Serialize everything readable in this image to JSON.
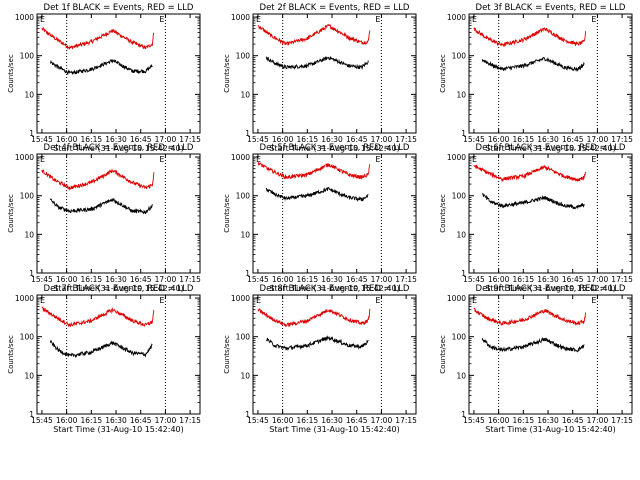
{
  "window": {
    "width_label": "",
    "background": "#ffffff"
  },
  "common": {
    "ylabel": "Counts/sec",
    "xlabel": "Start Time (31-Aug-10 15:42:40)",
    "x_ticks": [
      "15:45",
      "16:00",
      "16:15",
      "16:30",
      "16:45",
      "17:00",
      "17:15"
    ],
    "y_ticks": [
      "1",
      "10",
      "100",
      "1000"
    ],
    "flag_letter": "E",
    "colors": {
      "events": "#000000",
      "lld": "#dd0000"
    }
  },
  "chart_data": [
    {
      "type": "line",
      "title": "Det 1f BLACK = Events, RED = LLD",
      "xlabel": "Start Time (31-Aug-10 15:42:40)",
      "ylabel": "Counts/sec",
      "x_range": [
        "15:42",
        "17:21"
      ],
      "ylim": [
        1,
        1200
      ],
      "yscale": "log",
      "vlines": [
        "16:00",
        "17:00"
      ],
      "series": [
        {
          "name": "LLD",
          "color": "#dd0000",
          "x_min": [
            45,
            53,
            62,
            75,
            88,
            100,
            108,
            112,
            113
          ],
          "values": [
            500,
            280,
            160,
            230,
            450,
            220,
            160,
            200,
            420
          ]
        },
        {
          "name": "Events",
          "color": "#000000",
          "x_min": [
            50,
            55,
            62,
            75,
            88,
            100,
            108,
            112
          ],
          "values": [
            70,
            50,
            35,
            45,
            75,
            40,
            40,
            55
          ]
        }
      ]
    },
    {
      "type": "line",
      "title": "Det 2f BLACK = Events, RED = LLD",
      "xlabel": "Start Time (31-Aug-10 15:42:40)",
      "ylabel": "Counts/sec",
      "x_range": [
        "15:42",
        "17:21"
      ],
      "ylim": [
        1,
        1200
      ],
      "yscale": "log",
      "vlines": [
        "16:00",
        "17:00"
      ],
      "series": [
        {
          "name": "LLD",
          "color": "#dd0000",
          "x_min": [
            45,
            53,
            62,
            75,
            88,
            100,
            108,
            112,
            113
          ],
          "values": [
            600,
            330,
            200,
            280,
            600,
            300,
            220,
            230,
            500
          ]
        },
        {
          "name": "Events",
          "color": "#000000",
          "x_min": [
            50,
            55,
            62,
            75,
            88,
            100,
            108,
            112
          ],
          "values": [
            90,
            65,
            50,
            55,
            90,
            55,
            50,
            70
          ]
        }
      ]
    },
    {
      "type": "line",
      "title": "Det 3f BLACK = Events, RED = LLD",
      "xlabel": "Start Time (31-Aug-10 15:42:40)",
      "ylabel": "Counts/sec",
      "x_range": [
        "15:42",
        "17:21"
      ],
      "ylim": [
        1,
        1200
      ],
      "yscale": "log",
      "vlines": [
        "16:00",
        "17:00"
      ],
      "series": [
        {
          "name": "LLD",
          "color": "#dd0000",
          "x_min": [
            45,
            53,
            62,
            75,
            88,
            100,
            108,
            112,
            113
          ],
          "values": [
            500,
            280,
            190,
            260,
            500,
            250,
            200,
            230,
            450
          ]
        },
        {
          "name": "Events",
          "color": "#000000",
          "x_min": [
            50,
            55,
            62,
            75,
            88,
            100,
            108,
            112
          ],
          "values": [
            80,
            60,
            45,
            55,
            85,
            50,
            45,
            60
          ]
        }
      ]
    },
    {
      "type": "line",
      "title": "Det 4f BLACK = Events, RED = LLD",
      "xlabel": "Start Time (31-Aug-10 15:42:40)",
      "ylabel": "Counts/sec",
      "x_range": [
        "15:42",
        "17:21"
      ],
      "ylim": [
        1,
        1200
      ],
      "yscale": "log",
      "vlines": [
        "16:00",
        "17:00"
      ],
      "series": [
        {
          "name": "LLD",
          "color": "#dd0000",
          "x_min": [
            45,
            53,
            62,
            75,
            88,
            100,
            108,
            112,
            113
          ],
          "values": [
            450,
            250,
            160,
            220,
            450,
            220,
            160,
            190,
            380
          ]
        },
        {
          "name": "Events",
          "color": "#000000",
          "x_min": [
            50,
            55,
            62,
            75,
            88,
            100,
            108,
            112
          ],
          "values": [
            80,
            50,
            40,
            45,
            80,
            40,
            38,
            55
          ]
        }
      ]
    },
    {
      "type": "line",
      "title": "Det 5f BLACK = Events, RED = LLD",
      "xlabel": "Start Time (31-Aug-10 15:42:40)",
      "ylabel": "Counts/sec",
      "x_range": [
        "15:42",
        "17:21"
      ],
      "ylim": [
        1,
        1200
      ],
      "yscale": "log",
      "vlines": [
        "16:00",
        "17:00"
      ],
      "series": [
        {
          "name": "LLD",
          "color": "#dd0000",
          "x_min": [
            45,
            53,
            62,
            75,
            88,
            100,
            108,
            112,
            113
          ],
          "values": [
            700,
            450,
            300,
            350,
            650,
            350,
            300,
            350,
            650
          ]
        },
        {
          "name": "Events",
          "color": "#000000",
          "x_min": [
            50,
            55,
            62,
            75,
            88,
            100,
            108,
            112
          ],
          "values": [
            150,
            110,
            85,
            100,
            150,
            90,
            80,
            100
          ]
        }
      ]
    },
    {
      "type": "line",
      "title": "Det 6f BLACK = Events, RED = LLD",
      "xlabel": "Start Time (31-Aug-10 15:42:40)",
      "ylabel": "Counts/sec",
      "x_range": [
        "15:42",
        "17:21"
      ],
      "ylim": [
        1,
        1200
      ],
      "yscale": "log",
      "vlines": [
        "16:00",
        "17:00"
      ],
      "series": [
        {
          "name": "LLD",
          "color": "#dd0000",
          "x_min": [
            45,
            53,
            62,
            75,
            88,
            100,
            108,
            112,
            113
          ],
          "values": [
            600,
            400,
            270,
            320,
            550,
            320,
            260,
            300,
            450
          ]
        },
        {
          "name": "Events",
          "color": "#000000",
          "x_min": [
            50,
            55,
            62,
            75,
            88,
            100,
            108,
            112
          ],
          "values": [
            110,
            70,
            55,
            65,
            90,
            55,
            50,
            60
          ]
        }
      ]
    },
    {
      "type": "line",
      "title": "Det 7f BLACK = Events, RED = LLD",
      "xlabel": "Start Time (31-Aug-10 15:42:40)",
      "ylabel": "Counts/sec",
      "x_range": [
        "15:42",
        "17:21"
      ],
      "ylim": [
        1,
        1200
      ],
      "yscale": "log",
      "vlines": [
        "16:00",
        "17:00"
      ],
      "series": [
        {
          "name": "LLD",
          "color": "#dd0000",
          "x_min": [
            45,
            53,
            62,
            75,
            88,
            100,
            108,
            112,
            113
          ],
          "values": [
            550,
            330,
            200,
            260,
            500,
            260,
            200,
            240,
            480
          ]
        },
        {
          "name": "Events",
          "color": "#000000",
          "x_min": [
            50,
            55,
            62,
            75,
            88,
            100,
            108,
            112
          ],
          "values": [
            75,
            45,
            32,
            40,
            70,
            38,
            35,
            60
          ]
        }
      ]
    },
    {
      "type": "line",
      "title": "Det 8f BLACK = Events, RED = LLD",
      "xlabel": "Start Time (31-Aug-10 15:42:40)",
      "ylabel": "Counts/sec",
      "x_range": [
        "15:42",
        "17:21"
      ],
      "ylim": [
        1,
        1200
      ],
      "yscale": "log",
      "vlines": [
        "16:00",
        "17:00"
      ],
      "series": [
        {
          "name": "LLD",
          "color": "#dd0000",
          "x_min": [
            45,
            53,
            62,
            75,
            88,
            100,
            108,
            112,
            113
          ],
          "values": [
            500,
            300,
            200,
            260,
            500,
            280,
            220,
            260,
            480
          ]
        },
        {
          "name": "Events",
          "color": "#000000",
          "x_min": [
            50,
            55,
            62,
            75,
            88,
            100,
            108,
            112
          ],
          "values": [
            90,
            60,
            50,
            60,
            95,
            60,
            55,
            75
          ]
        }
      ]
    },
    {
      "type": "line",
      "title": "Det 9f BLACK = Events, RED = LLD",
      "xlabel": "Start Time (31-Aug-10 15:42:40)",
      "ylabel": "Counts/sec",
      "x_range": [
        "15:42",
        "17:21"
      ],
      "ylim": [
        1,
        1200
      ],
      "yscale": "log",
      "vlines": [
        "16:00",
        "17:00"
      ],
      "series": [
        {
          "name": "LLD",
          "color": "#dd0000",
          "x_min": [
            45,
            53,
            62,
            75,
            88,
            100,
            108,
            112,
            113
          ],
          "values": [
            500,
            300,
            220,
            270,
            480,
            270,
            220,
            260,
            420
          ]
        },
        {
          "name": "Events",
          "color": "#000000",
          "x_min": [
            50,
            55,
            62,
            75,
            88,
            100,
            108,
            112
          ],
          "values": [
            90,
            55,
            45,
            55,
            85,
            50,
            45,
            60
          ]
        }
      ]
    }
  ]
}
